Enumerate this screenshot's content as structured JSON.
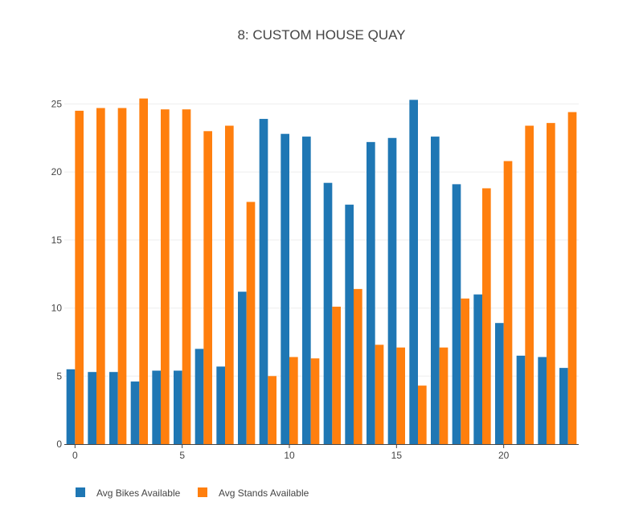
{
  "chart_data": {
    "type": "bar",
    "title": "8: CUSTOM HOUSE QUAY",
    "xlabel": "",
    "ylabel": "",
    "x": [
      0,
      1,
      2,
      3,
      4,
      5,
      6,
      7,
      8,
      9,
      10,
      11,
      12,
      13,
      14,
      15,
      16,
      17,
      18,
      19,
      20,
      21,
      22,
      23
    ],
    "xticks": [
      0,
      5,
      10,
      15,
      20
    ],
    "yticks": [
      0,
      5,
      10,
      15,
      20,
      25
    ],
    "ylim": [
      0,
      26.5
    ],
    "xlim": [
      -0.5,
      23.5
    ],
    "grid": "horizontal",
    "legend_position": "bottom-left",
    "series": [
      {
        "name": "Avg Bikes Available",
        "color": "#1f77b4",
        "values": [
          5.5,
          5.3,
          5.3,
          4.6,
          5.4,
          5.4,
          7.0,
          5.7,
          11.2,
          23.9,
          22.8,
          22.6,
          19.2,
          17.6,
          22.2,
          22.5,
          25.3,
          22.6,
          19.1,
          11.0,
          8.9,
          6.5,
          6.4,
          5.6
        ]
      },
      {
        "name": "Avg Stands Available",
        "color": "#ff7f0e",
        "values": [
          24.5,
          24.7,
          24.7,
          25.4,
          24.6,
          24.6,
          23.0,
          23.4,
          17.8,
          5.0,
          6.4,
          6.3,
          10.1,
          11.4,
          7.3,
          7.1,
          4.3,
          7.1,
          10.7,
          18.8,
          20.8,
          23.4,
          23.6,
          24.4
        ]
      }
    ]
  }
}
